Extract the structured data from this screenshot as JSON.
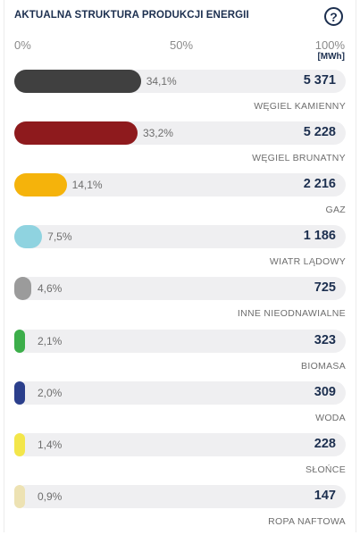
{
  "header": {
    "title": "AKTUALNA STRUKTURA PRODUKCJI ENERGII",
    "help_icon": "question-circle-icon",
    "help_glyph": "?"
  },
  "scale": {
    "left": "0%",
    "mid": "50%",
    "right": "100%",
    "unit": "[MWh]"
  },
  "chart_data": {
    "type": "bar",
    "orientation": "horizontal",
    "title": "AKTUALNA STRUKTURA PRODUKCJI ENERGII",
    "xlim": [
      0,
      100
    ],
    "unit": "[MWh]",
    "items": [
      {
        "name": "WĘGIEL KAMIENNY",
        "pct": 34.1,
        "pct_label": "34,1%",
        "value": 5371,
        "value_label": "5 371",
        "color": "#404040"
      },
      {
        "name": "WĘGIEL BRUNATNY",
        "pct": 33.2,
        "pct_label": "33,2%",
        "value": 5228,
        "value_label": "5 228",
        "color": "#8e1a1d"
      },
      {
        "name": "GAZ",
        "pct": 14.1,
        "pct_label": "14,1%",
        "value": 2216,
        "value_label": "2 216",
        "color": "#f5b30b"
      },
      {
        "name": "WIATR LĄDOWY",
        "pct": 7.5,
        "pct_label": "7,5%",
        "value": 1186,
        "value_label": "1 186",
        "color": "#8fd3e0"
      },
      {
        "name": "INNE NIEODNAWIALNE",
        "pct": 4.6,
        "pct_label": "4,6%",
        "value": 725,
        "value_label": "725",
        "color": "#9b9b9b"
      },
      {
        "name": "BIOMASA",
        "pct": 2.1,
        "pct_label": "2,1%",
        "value": 323,
        "value_label": "323",
        "color": "#3cae4a"
      },
      {
        "name": "WODA",
        "pct": 2.0,
        "pct_label": "2,0%",
        "value": 309,
        "value_label": "309",
        "color": "#2b3f8c"
      },
      {
        "name": "SŁOŃCE",
        "pct": 1.4,
        "pct_label": "1,4%",
        "value": 228,
        "value_label": "228",
        "color": "#f3e64a"
      },
      {
        "name": "ROPA NAFTOWA",
        "pct": 0.9,
        "pct_label": "0,9%",
        "value": 147,
        "value_label": "147",
        "color": "#ede2b3"
      }
    ]
  }
}
